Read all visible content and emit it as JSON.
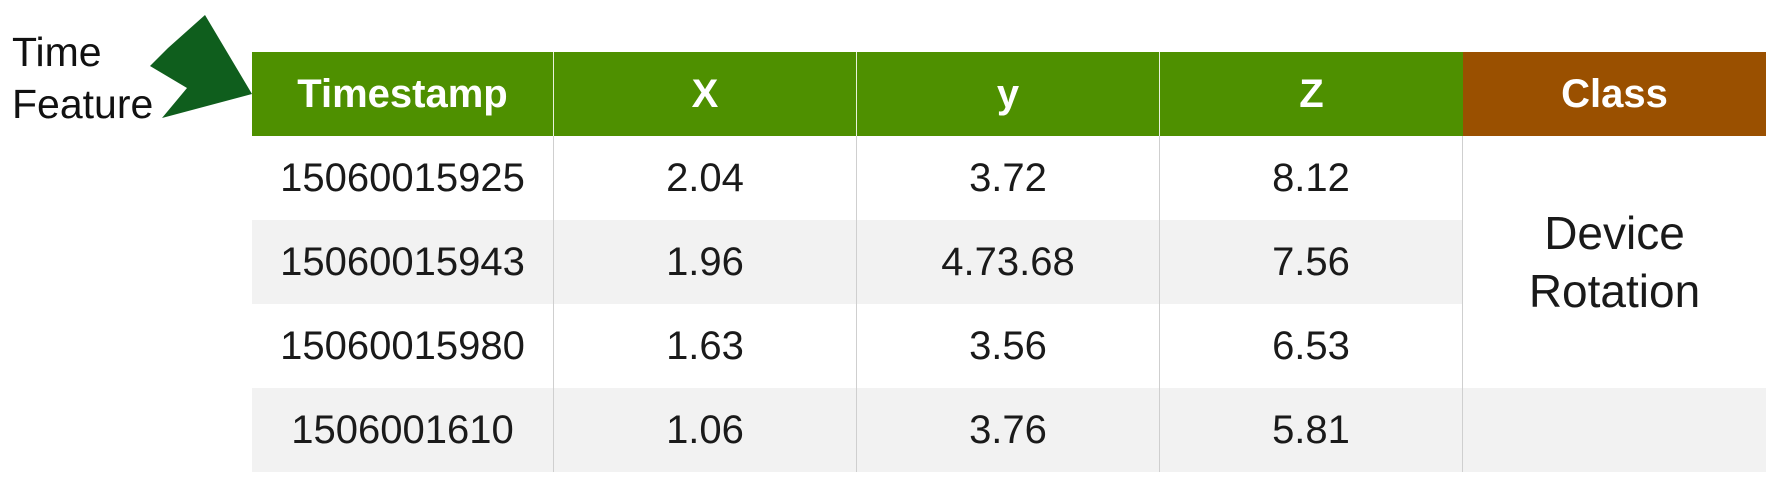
{
  "callout": {
    "line1": "Time",
    "line2": "Feature",
    "arrow_color": "#0f5e1d"
  },
  "table": {
    "headers": [
      "Timestamp",
      "X",
      "y",
      "Z",
      "Class"
    ],
    "header_color": "#4e9000",
    "class_header_color": "#9a5000",
    "rows": [
      [
        "15060015925",
        "2.04",
        "3.72",
        "8.12"
      ],
      [
        "15060015943",
        "1.96",
        "4.73.68",
        "7.56"
      ],
      [
        "15060015980",
        "1.63",
        "3.56",
        "6.53"
      ],
      [
        "1506001610",
        "1.06",
        "3.76",
        "5.81"
      ]
    ],
    "class_value": {
      "line1": "Device",
      "line2": "Rotation"
    }
  }
}
